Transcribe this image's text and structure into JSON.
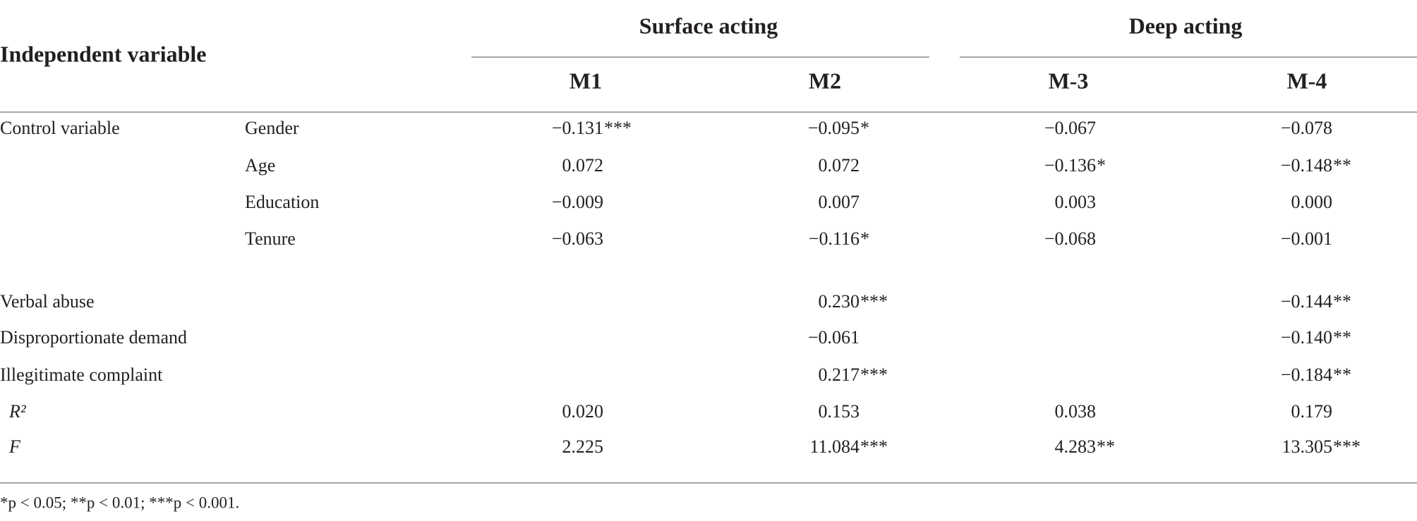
{
  "header": {
    "title": "Independent variable",
    "groups": [
      "Surface acting",
      "Deep acting"
    ],
    "models": [
      "M1",
      "M2",
      "M-3",
      "M-4"
    ]
  },
  "control": {
    "label": "Control variable",
    "rows": [
      {
        "label": "Gender",
        "cells": [
          {
            "num": "−0.131",
            "sig": "***"
          },
          {
            "num": "−0.095",
            "sig": "*"
          },
          {
            "num": "−0.067"
          },
          {
            "num": "−0.078"
          }
        ]
      },
      {
        "label": "Age",
        "cells": [
          {
            "num": "0.072"
          },
          {
            "num": "0.072"
          },
          {
            "num": "−0.136",
            "sig": "*"
          },
          {
            "num": "−0.148",
            "sig": "**"
          }
        ]
      },
      {
        "label": "Education",
        "cells": [
          {
            "num": "−0.009"
          },
          {
            "num": "0.007"
          },
          {
            "num": "0.003"
          },
          {
            "num": "0.000"
          }
        ]
      },
      {
        "label": "Tenure",
        "cells": [
          {
            "num": "−0.063"
          },
          {
            "num": "−0.116",
            "sig": "*"
          },
          {
            "num": "−0.068"
          },
          {
            "num": "−0.001"
          }
        ]
      }
    ]
  },
  "predictors": [
    {
      "label": "Verbal abuse",
      "cells": [
        null,
        {
          "num": "0.230",
          "sig": "***"
        },
        null,
        {
          "num": "−0.144",
          "sig": "**"
        }
      ]
    },
    {
      "label": "Disproportionate demand",
      "cells": [
        null,
        {
          "num": "−0.061"
        },
        null,
        {
          "num": "−0.140",
          "sig": "**"
        }
      ]
    },
    {
      "label": "Illegitimate complaint",
      "cells": [
        null,
        {
          "num": "0.217",
          "sig": "***"
        },
        null,
        {
          "num": "−0.184",
          "sig": "**"
        }
      ]
    }
  ],
  "fit": [
    {
      "label": "R²",
      "cells": [
        {
          "num": "0.020"
        },
        {
          "num": "0.153"
        },
        {
          "num": "0.038"
        },
        {
          "num": "0.179"
        }
      ]
    },
    {
      "label": "F",
      "cells": [
        {
          "num": "2.225"
        },
        {
          "num": "11.084",
          "sig": "***"
        },
        {
          "num": "4.283",
          "sig": "**"
        },
        {
          "num": "13.305",
          "sig": "***"
        }
      ]
    }
  ],
  "footnote": "*p < 0.05; **p < 0.01; ***p < 0.001."
}
